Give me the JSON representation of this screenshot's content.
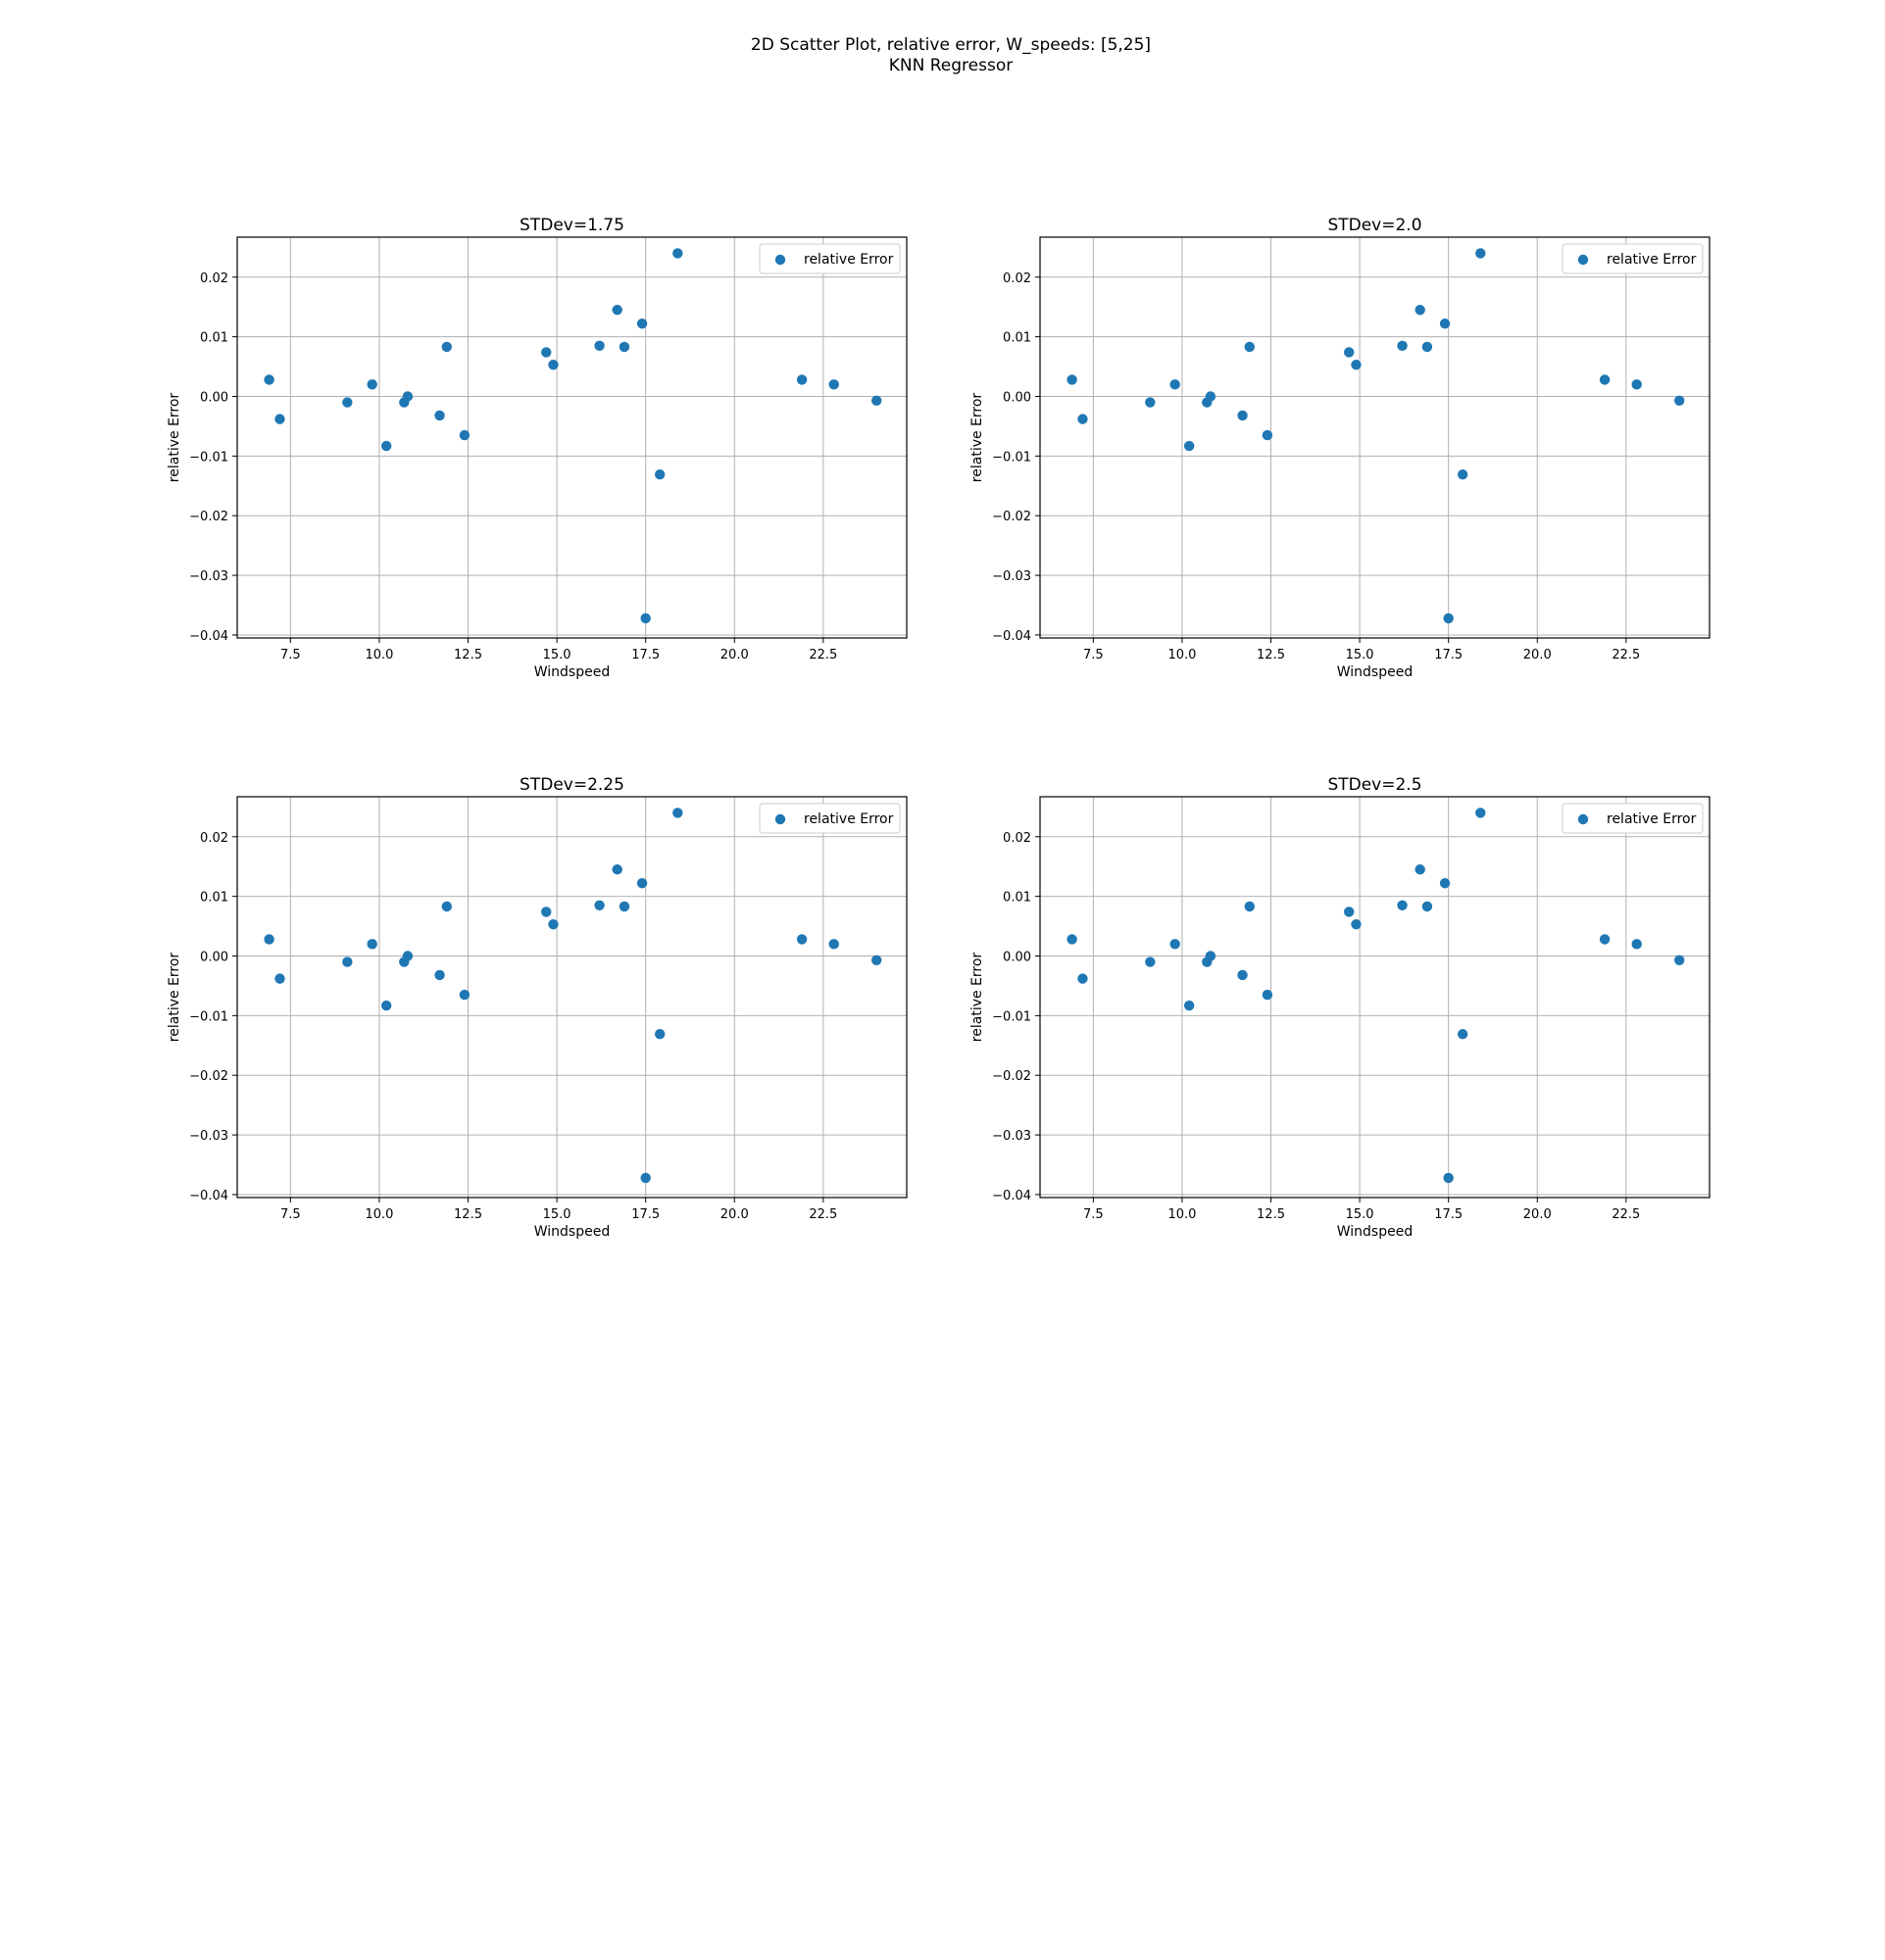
{
  "figure": {
    "suptitle_line1": "2D Scatter Plot, relative error, W_speeds: [5,25]",
    "suptitle_line2": "KNN Regressor",
    "marker_color": "#1f77b4",
    "grid_color": "#b0b0b0"
  },
  "chart_data": [
    {
      "type": "scatter",
      "title": "STDev=1.75",
      "xlabel": "Windspeed",
      "ylabel": "relative Error",
      "xlim": [
        6.0,
        24.85
      ],
      "ylim": [
        -0.0405,
        0.0267
      ],
      "xticks": [
        7.5,
        10.0,
        12.5,
        15.0,
        17.5,
        20.0,
        22.5
      ],
      "xtick_labels": [
        "7.5",
        "10.0",
        "12.5",
        "15.0",
        "17.5",
        "20.0",
        "22.5"
      ],
      "yticks": [
        0.02,
        0.01,
        0.0,
        -0.01,
        -0.02,
        -0.03,
        -0.04
      ],
      "ytick_labels": [
        "0.02",
        "0.01",
        "0.00",
        "−0.01",
        "−0.02",
        "−0.03",
        "−0.04"
      ],
      "grid": true,
      "legend_position": "top-right",
      "series": [
        {
          "name": "relative Error",
          "x": [
            6.9,
            7.2,
            9.1,
            9.8,
            10.2,
            10.7,
            10.8,
            11.7,
            11.9,
            12.4,
            14.7,
            14.9,
            16.2,
            16.7,
            16.9,
            17.4,
            17.5,
            17.9,
            18.4,
            21.9,
            22.8,
            24.0
          ],
          "y": [
            0.0028,
            -0.0038,
            -0.001,
            0.002,
            -0.0083,
            -0.001,
            0.0,
            -0.0032,
            0.0083,
            -0.0065,
            0.0074,
            0.0053,
            0.0085,
            0.0145,
            0.0083,
            0.0122,
            -0.0372,
            -0.0131,
            0.024,
            0.0028,
            0.002,
            -0.0007
          ]
        }
      ]
    },
    {
      "type": "scatter",
      "title": "STDev=2.0",
      "xlabel": "Windspeed",
      "ylabel": "relative Error",
      "xlim": [
        6.0,
        24.85
      ],
      "ylim": [
        -0.0405,
        0.0267
      ],
      "xticks": [
        7.5,
        10.0,
        12.5,
        15.0,
        17.5,
        20.0,
        22.5
      ],
      "xtick_labels": [
        "7.5",
        "10.0",
        "12.5",
        "15.0",
        "17.5",
        "20.0",
        "22.5"
      ],
      "yticks": [
        0.02,
        0.01,
        0.0,
        -0.01,
        -0.02,
        -0.03,
        -0.04
      ],
      "ytick_labels": [
        "0.02",
        "0.01",
        "0.00",
        "−0.01",
        "−0.02",
        "−0.03",
        "−0.04"
      ],
      "grid": true,
      "legend_position": "top-right",
      "series": [
        {
          "name": "relative Error",
          "x": [
            6.9,
            7.2,
            9.1,
            9.8,
            10.2,
            10.7,
            10.8,
            11.7,
            11.9,
            12.4,
            14.7,
            14.9,
            16.2,
            16.7,
            16.9,
            17.4,
            17.5,
            17.9,
            18.4,
            21.9,
            22.8,
            24.0
          ],
          "y": [
            0.0028,
            -0.0038,
            -0.001,
            0.002,
            -0.0083,
            -0.001,
            0.0,
            -0.0032,
            0.0083,
            -0.0065,
            0.0074,
            0.0053,
            0.0085,
            0.0145,
            0.0083,
            0.0122,
            -0.0372,
            -0.0131,
            0.024,
            0.0028,
            0.002,
            -0.0007
          ]
        }
      ]
    },
    {
      "type": "scatter",
      "title": "STDev=2.25",
      "xlabel": "Windspeed",
      "ylabel": "relative Error",
      "xlim": [
        6.0,
        24.85
      ],
      "ylim": [
        -0.0405,
        0.0267
      ],
      "xticks": [
        7.5,
        10.0,
        12.5,
        15.0,
        17.5,
        20.0,
        22.5
      ],
      "xtick_labels": [
        "7.5",
        "10.0",
        "12.5",
        "15.0",
        "17.5",
        "20.0",
        "22.5"
      ],
      "yticks": [
        0.02,
        0.01,
        0.0,
        -0.01,
        -0.02,
        -0.03,
        -0.04
      ],
      "ytick_labels": [
        "0.02",
        "0.01",
        "0.00",
        "−0.01",
        "−0.02",
        "−0.03",
        "−0.04"
      ],
      "grid": true,
      "legend_position": "top-right",
      "series": [
        {
          "name": "relative Error",
          "x": [
            6.9,
            7.2,
            9.1,
            9.8,
            10.2,
            10.7,
            10.8,
            11.7,
            11.9,
            12.4,
            14.7,
            14.9,
            16.2,
            16.7,
            16.9,
            17.4,
            17.5,
            17.9,
            18.4,
            21.9,
            22.8,
            24.0
          ],
          "y": [
            0.0028,
            -0.0038,
            -0.001,
            0.002,
            -0.0083,
            -0.001,
            0.0,
            -0.0032,
            0.0083,
            -0.0065,
            0.0074,
            0.0053,
            0.0085,
            0.0145,
            0.0083,
            0.0122,
            -0.0372,
            -0.0131,
            0.024,
            0.0028,
            0.002,
            -0.0007
          ]
        }
      ]
    },
    {
      "type": "scatter",
      "title": "STDev=2.5",
      "xlabel": "Windspeed",
      "ylabel": "relative Error",
      "xlim": [
        6.0,
        24.85
      ],
      "ylim": [
        -0.0405,
        0.0267
      ],
      "xticks": [
        7.5,
        10.0,
        12.5,
        15.0,
        17.5,
        20.0,
        22.5
      ],
      "xtick_labels": [
        "7.5",
        "10.0",
        "12.5",
        "15.0",
        "17.5",
        "20.0",
        "22.5"
      ],
      "yticks": [
        0.02,
        0.01,
        0.0,
        -0.01,
        -0.02,
        -0.03,
        -0.04
      ],
      "ytick_labels": [
        "0.02",
        "0.01",
        "0.00",
        "−0.01",
        "−0.02",
        "−0.03",
        "−0.04"
      ],
      "grid": true,
      "legend_position": "top-right",
      "series": [
        {
          "name": "relative Error",
          "x": [
            6.9,
            7.2,
            9.1,
            9.8,
            10.2,
            10.7,
            10.8,
            11.7,
            11.9,
            12.4,
            14.7,
            14.9,
            16.2,
            16.7,
            16.9,
            17.4,
            17.5,
            17.9,
            18.4,
            21.9,
            22.8,
            24.0
          ],
          "y": [
            0.0028,
            -0.0038,
            -0.001,
            0.002,
            -0.0083,
            -0.001,
            0.0,
            -0.0032,
            0.0083,
            -0.0065,
            0.0074,
            0.0053,
            0.0085,
            0.0145,
            0.0083,
            0.0122,
            -0.0372,
            -0.0131,
            0.024,
            0.0028,
            0.002,
            -0.0007
          ]
        }
      ]
    }
  ]
}
